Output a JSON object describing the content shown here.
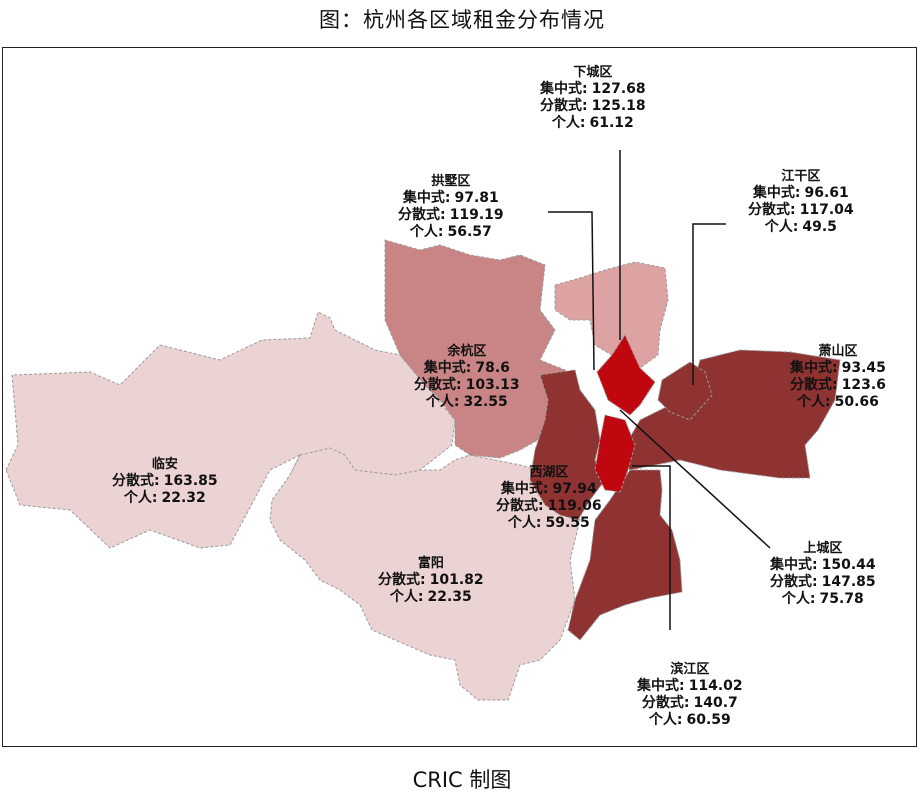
{
  "title": "图：杭州各区域租金分布情况",
  "credit": "CRIC 制图",
  "colors": {
    "lightest": "#ecd3d3",
    "light": "#dda3a3",
    "medium": "#c98585",
    "dark": "#8e3232",
    "darkest": "#c0060f",
    "border": "#9a9a9a"
  },
  "districts": {
    "xiacheng": {
      "name": "下城区",
      "k1": "集中式:",
      "v1": "127.68",
      "k2": "分散式:",
      "v2": "125.18",
      "k3": "个人:",
      "v3": "61.12"
    },
    "gongshu": {
      "name": "拱墅区",
      "k1": "集中式:",
      "v1": "97.81",
      "k2": "分散式:",
      "v2": "119.19",
      "k3": "个人:",
      "v3": "56.57"
    },
    "jianggan": {
      "name": "江干区",
      "k1": "集中式:",
      "v1": "96.61",
      "k2": "分散式:",
      "v2": "117.04",
      "k3": "个人:",
      "v3": "49.5"
    },
    "yuhang": {
      "name": "余杭区",
      "k1": "集中式:",
      "v1": "78.6",
      "k2": "分散式:",
      "v2": "103.13",
      "k3": "个人:",
      "v3": "32.55"
    },
    "xiaoshan": {
      "name": "萧山区",
      "k1": "集中式:",
      "v1": "93.45",
      "k2": "分散式:",
      "v2": "123.6",
      "k3": "个人:",
      "v3": "50.66"
    },
    "linan": {
      "name": "临安",
      "k2": "分散式:",
      "v2": "163.85",
      "k3": "个人:",
      "v3": "22.32"
    },
    "xihu": {
      "name": "西湖区",
      "k1": "集中式:",
      "v1": "97.94",
      "k2": "分散式:",
      "v2": "119.06",
      "k3": "个人:",
      "v3": "59.55"
    },
    "fuyang": {
      "name": "富阳",
      "k2": "分散式:",
      "v2": "101.82",
      "k3": "个人:",
      "v3": "22.35"
    },
    "shangcheng": {
      "name": "上城区",
      "k1": "集中式:",
      "v1": "150.44",
      "k2": "分散式:",
      "v2": "147.85",
      "k3": "个人:",
      "v3": "75.78"
    },
    "binjiang": {
      "name": "滨江区",
      "k1": "集中式:",
      "v1": "114.02",
      "k2": "分散式:",
      "v2": "140.7",
      "k3": "个人:",
      "v3": "60.59"
    }
  }
}
